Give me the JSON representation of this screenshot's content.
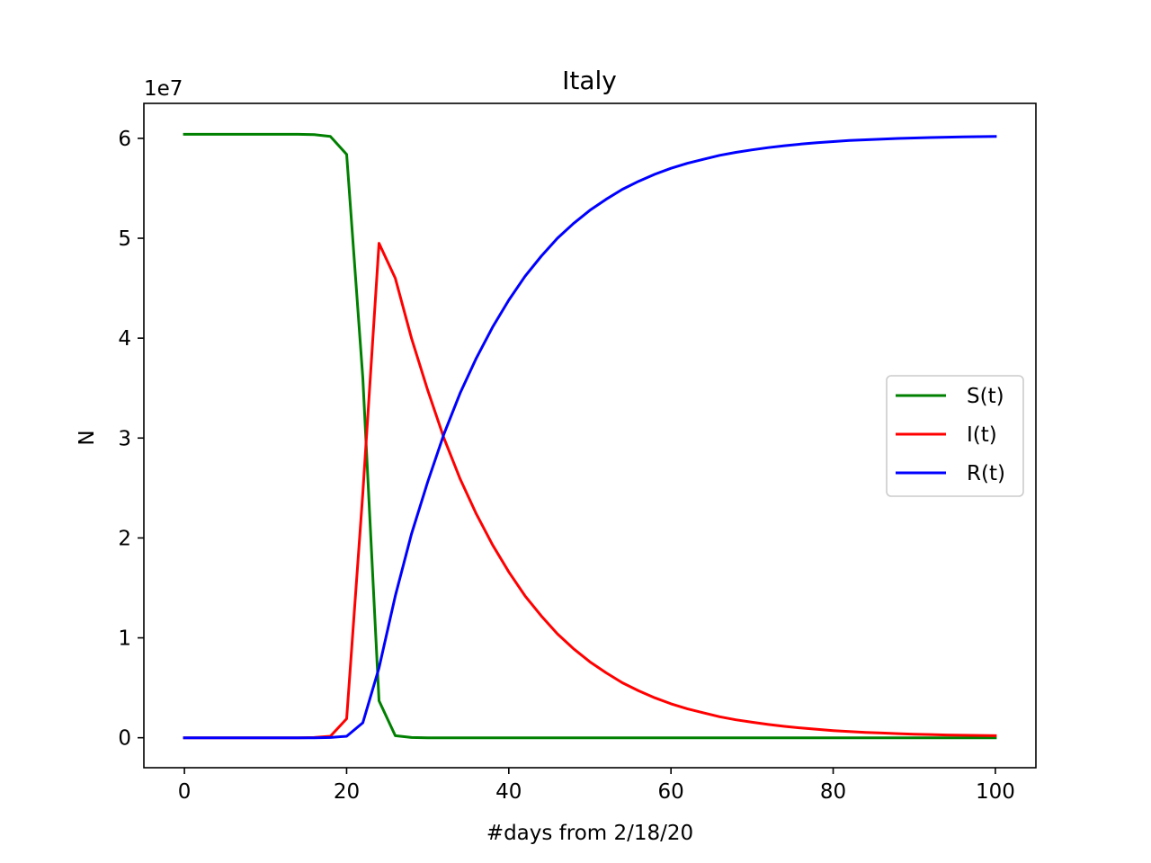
{
  "chart_data": {
    "type": "line",
    "title": "Italy",
    "xlabel": "#days from 2/18/20",
    "ylabel": "N",
    "offset_text": "1e7",
    "xlim": [
      -5,
      105
    ],
    "ylim": [
      -3,
      63.5
    ],
    "xticks": [
      0,
      20,
      40,
      60,
      80,
      100
    ],
    "xtick_labels": [
      "0",
      "20",
      "40",
      "60",
      "80",
      "100"
    ],
    "yticks": [
      0,
      10,
      20,
      30,
      40,
      50,
      60
    ],
    "ytick_labels": [
      "0",
      "1",
      "2",
      "3",
      "4",
      "5",
      "6"
    ],
    "y_multiplier": 1000000,
    "grid": false,
    "legend_position": "center-right",
    "series": [
      {
        "name": "S(t)",
        "color": "#008000",
        "x": [
          0,
          2,
          4,
          6,
          8,
          10,
          12,
          14,
          16,
          18,
          20,
          22,
          24,
          26,
          28,
          30,
          35,
          40,
          50,
          60,
          70,
          80,
          90,
          100
        ],
        "y": [
          60.4,
          60.4,
          60.4,
          60.4,
          60.4,
          60.4,
          60.4,
          60.4,
          60.38,
          60.2,
          58.4,
          36.0,
          3.7,
          0.2,
          0.02,
          0.0,
          0.0,
          0.0,
          0.0,
          0.0,
          0.0,
          0.0,
          0.0,
          0.0
        ]
      },
      {
        "name": "I(t)",
        "color": "#ff0000",
        "x": [
          0,
          2,
          4,
          6,
          8,
          10,
          12,
          14,
          16,
          18,
          20,
          22,
          24,
          26,
          28,
          30,
          32,
          34,
          36,
          38,
          40,
          42,
          44,
          46,
          48,
          50,
          52,
          54,
          56,
          58,
          60,
          62,
          64,
          66,
          68,
          70,
          72,
          74,
          76,
          78,
          80,
          82,
          84,
          86,
          88,
          90,
          92,
          94,
          96,
          98,
          100
        ],
        "y": [
          0.0,
          0.0,
          0.0,
          0.0,
          0.0,
          0.0,
          0.0,
          0.0,
          0.02,
          0.15,
          1.9,
          24.5,
          49.5,
          46.0,
          40.0,
          34.8,
          30.0,
          25.9,
          22.4,
          19.3,
          16.6,
          14.2,
          12.2,
          10.4,
          8.9,
          7.6,
          6.5,
          5.5,
          4.7,
          4.0,
          3.4,
          2.9,
          2.5,
          2.1,
          1.8,
          1.55,
          1.33,
          1.14,
          0.98,
          0.84,
          0.72,
          0.62,
          0.54,
          0.47,
          0.41,
          0.36,
          0.32,
          0.28,
          0.25,
          0.23,
          0.21
        ]
      },
      {
        "name": "R(t)",
        "color": "#0000ff",
        "x": [
          0,
          2,
          4,
          6,
          8,
          10,
          12,
          14,
          16,
          18,
          20,
          22,
          24,
          26,
          28,
          30,
          32,
          34,
          36,
          38,
          40,
          42,
          44,
          46,
          48,
          50,
          52,
          54,
          56,
          58,
          60,
          62,
          64,
          66,
          68,
          70,
          72,
          74,
          76,
          78,
          80,
          82,
          84,
          86,
          88,
          90,
          92,
          94,
          96,
          98,
          100
        ],
        "y": [
          0.0,
          0.0,
          0.0,
          0.0,
          0.0,
          0.0,
          0.0,
          0.0,
          0.0,
          0.02,
          0.15,
          1.5,
          7.0,
          14.2,
          20.4,
          25.6,
          30.4,
          34.5,
          38.0,
          41.1,
          43.8,
          46.2,
          48.2,
          50.0,
          51.5,
          52.8,
          53.9,
          54.9,
          55.7,
          56.4,
          57.0,
          57.5,
          57.9,
          58.3,
          58.6,
          58.85,
          59.07,
          59.26,
          59.42,
          59.56,
          59.68,
          59.78,
          59.86,
          59.93,
          59.99,
          60.04,
          60.08,
          60.12,
          60.15,
          60.17,
          60.19
        ]
      }
    ]
  }
}
